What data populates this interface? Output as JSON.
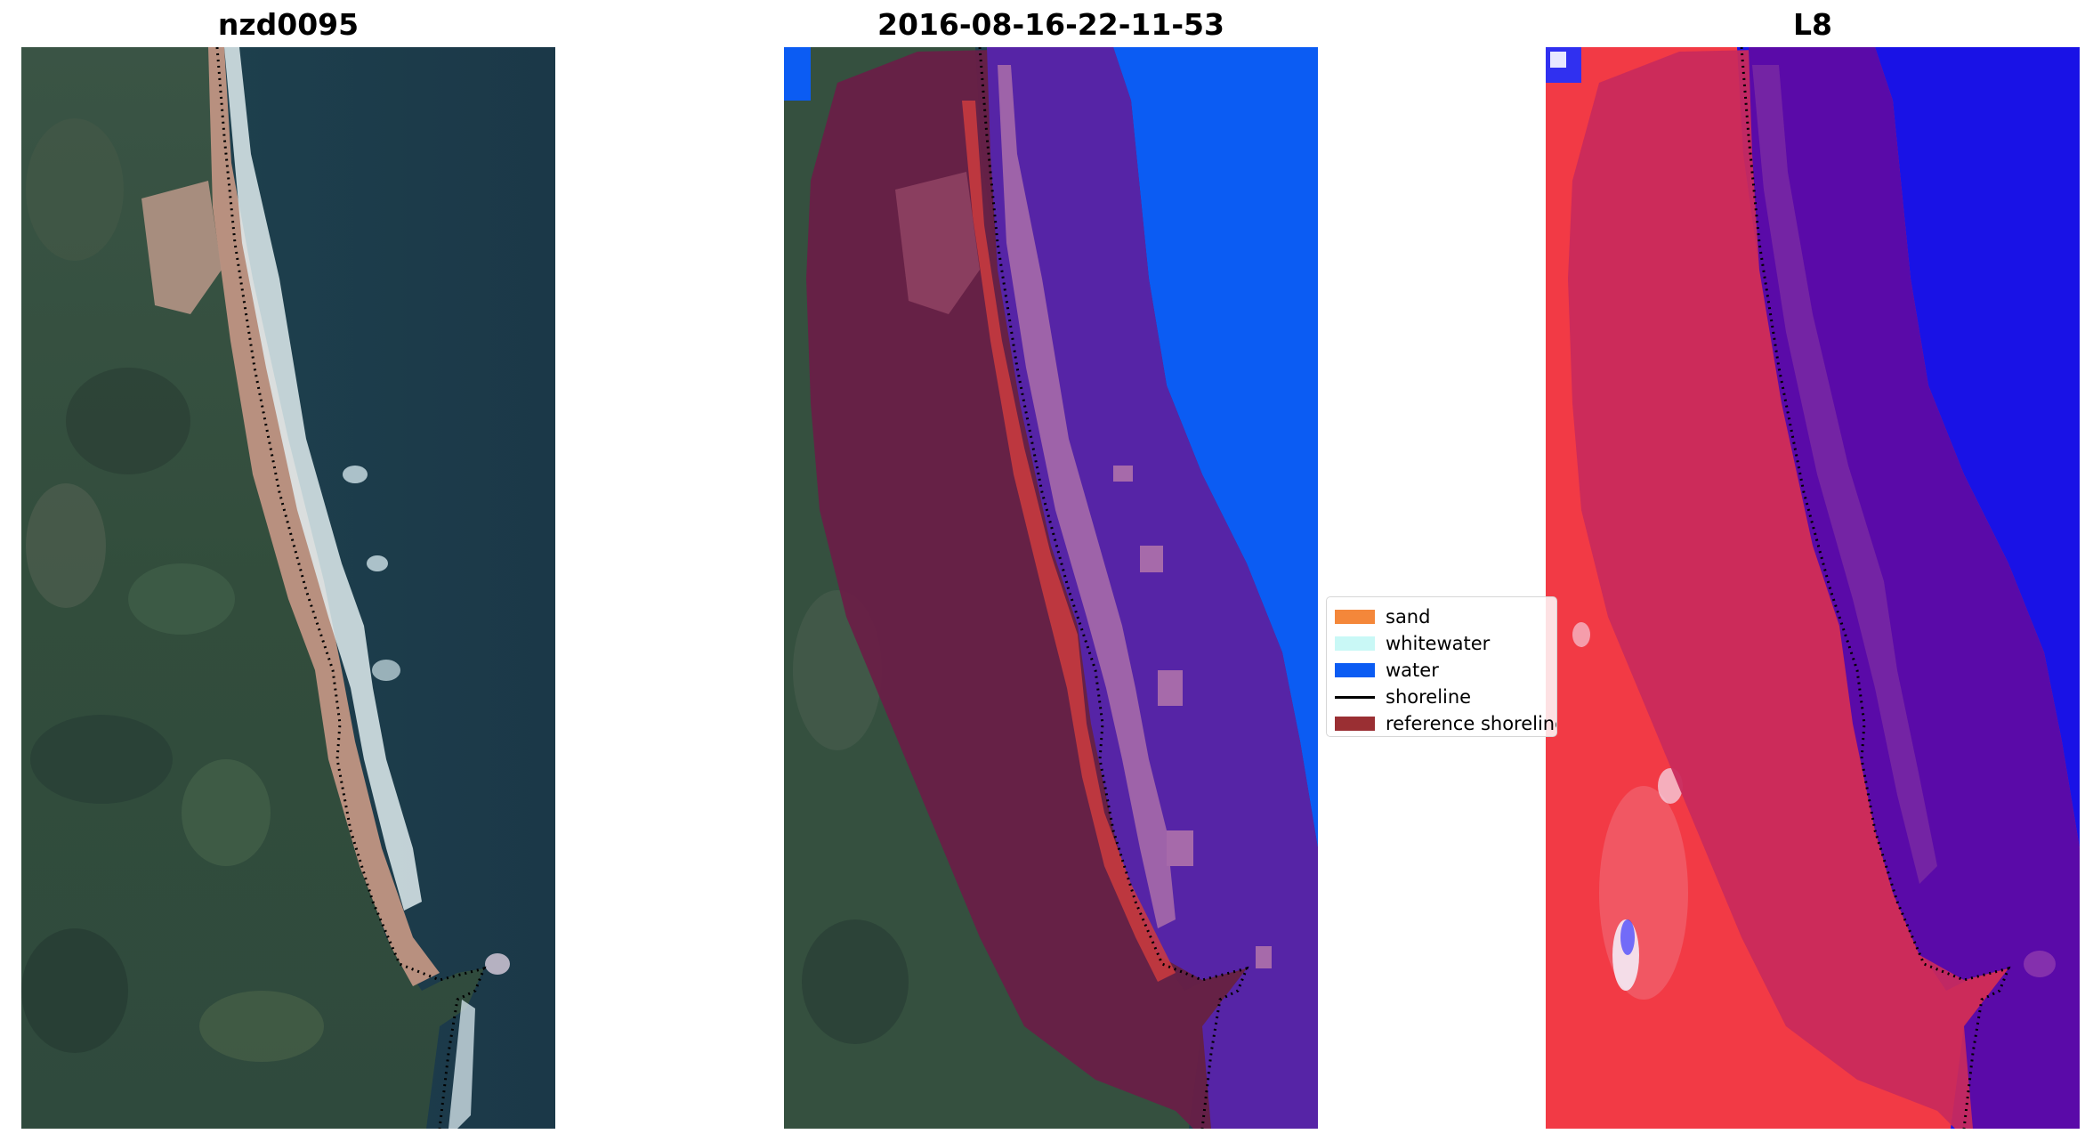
{
  "panels": [
    {
      "title": "nzd0095",
      "image": "rgb-satellite-image"
    },
    {
      "title": "2016-08-16-22-11-53",
      "image": "classified-satellite-image"
    },
    {
      "title": "L8",
      "image": "water-index-image"
    }
  ],
  "legend": {
    "entries": [
      {
        "label": "sand",
        "color": "#f4873a",
        "kind": "patch"
      },
      {
        "label": "whitewater",
        "color": "#c9f8f6",
        "kind": "patch"
      },
      {
        "label": "water",
        "color": "#0b5cf3",
        "kind": "patch"
      },
      {
        "label": "shoreline",
        "color": "#000000",
        "kind": "line"
      },
      {
        "label": "reference shoreline",
        "color": "#9a2f33",
        "kind": "patch"
      }
    ]
  },
  "colors": {
    "land_rgb": "#35503f",
    "sea_rgb": "#1d3f4d",
    "beach_rgb": "#b8907f",
    "surf_rgb": "#dfecef",
    "land_class": "#7a1f46",
    "water_class": "#0b5cf3",
    "buffer_water": "#5624a6",
    "index_land": "#f23a45",
    "index_water": "#1912e6",
    "index_buffer_water": "#5a0aa8",
    "index_buffer_land": "#c92a5c"
  }
}
